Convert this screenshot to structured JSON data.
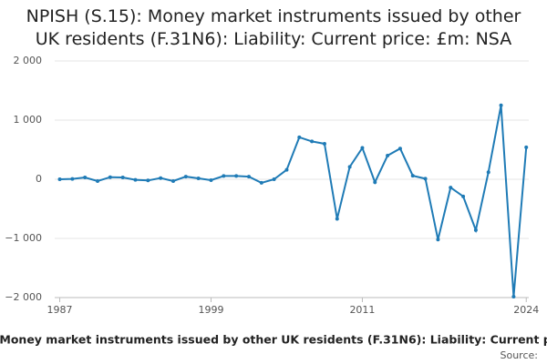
{
  "chart_data": {
    "type": "line",
    "title": "NPISH (S.15): Money market instruments issued by other UK residents (F.31N6): Liability: Current price: £m: NSA",
    "source_label": "Source:",
    "x": [
      1987,
      1988,
      1989,
      1990,
      1991,
      1992,
      1993,
      1994,
      1995,
      1996,
      1997,
      1998,
      1999,
      2000,
      2001,
      2002,
      2003,
      2004,
      2005,
      2006,
      2007,
      2008,
      2009,
      2010,
      2011,
      2012,
      2013,
      2014,
      2015,
      2016,
      2017,
      2018,
      2019,
      2020,
      2021,
      2022,
      2023,
      2024
    ],
    "series": [
      {
        "color": "#1f7bb6",
        "values": [
          0,
          5,
          30,
          -30,
          35,
          30,
          -10,
          -20,
          20,
          -30,
          45,
          15,
          -15,
          55,
          55,
          45,
          -60,
          0,
          160,
          710,
          640,
          600,
          -670,
          210,
          530,
          -50,
          400,
          520,
          60,
          10,
          -1020,
          -140,
          -290,
          -860,
          120,
          1250,
          -1985,
          540
        ]
      }
    ],
    "xlim": [
      1986.6,
      2024.2
    ],
    "xticks": [
      1987,
      1999,
      2011,
      2024
    ],
    "ylim": [
      -2000,
      2000
    ],
    "yticks": [
      {
        "value": -2000,
        "label": "−2 000"
      },
      {
        "value": -1000,
        "label": "−1 000"
      },
      0,
      {
        "value": 1000,
        "label": "1 000"
      },
      {
        "value": 2000,
        "label": "2 000"
      }
    ],
    "grid": true
  }
}
